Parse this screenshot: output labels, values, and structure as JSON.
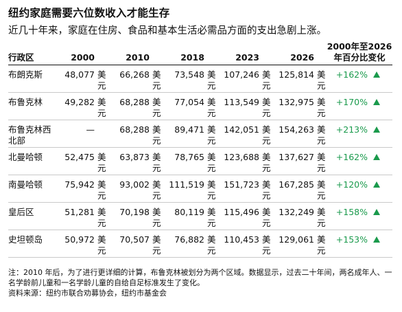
{
  "title": "纽约家庭需要六位数收入才能生存",
  "subtitle": "近几十年来，家庭在住房、食品和基本生活必需品方面的支出急剧上涨。",
  "table": {
    "headers": [
      "行政区",
      "2000",
      "2010",
      "2018",
      "2023",
      "2026",
      "2000年至2026年百分比变化"
    ],
    "unit": "美元",
    "rows": [
      {
        "region": "布朗克斯",
        "values": [
          "48,077",
          "66,268",
          "73,548",
          "107,246",
          "125,814"
        ],
        "change": "+162%"
      },
      {
        "region": "布鲁克林",
        "values": [
          "49,282",
          "68,288",
          "77,054",
          "113,549",
          "132,975"
        ],
        "change": "+170%"
      },
      {
        "region": "布鲁克林西北部",
        "values": [
          "—",
          "68,288",
          "89,471",
          "142,051",
          "154,263"
        ],
        "change": "+213%"
      },
      {
        "region": "北曼哈顿",
        "values": [
          "52,475",
          "63,873",
          "78,765",
          "123,688",
          "137,627"
        ],
        "change": "+162%"
      },
      {
        "region": "南曼哈顿",
        "values": [
          "75,942",
          "93,002",
          "111,519",
          "151,723",
          "167,285"
        ],
        "change": "+120%"
      },
      {
        "region": "皇后区",
        "values": [
          "51,281",
          "70,198",
          "80,119",
          "115,496",
          "132,249"
        ],
        "change": "+158%"
      },
      {
        "region": "史坦顿岛",
        "values": [
          "50,972",
          "70,507",
          "76,882",
          "110,453",
          "129,061"
        ],
        "change": "+153%"
      }
    ]
  },
  "note": "注：2010 年后，为了进行更详细的计算，布鲁克林被划分为两个区域。数据显示，过去二十年间，两名成年人、一名学龄前儿童和一名学龄儿童的自给自足标准发生了变化。",
  "source": "资料来源：纽约市联合劝募协会，纽约市基金会",
  "colors": {
    "increase": "#1a9a4c",
    "text": "#111111",
    "rule": "#c9c9c9"
  },
  "icons": {
    "increase": "up-triangle-icon"
  }
}
